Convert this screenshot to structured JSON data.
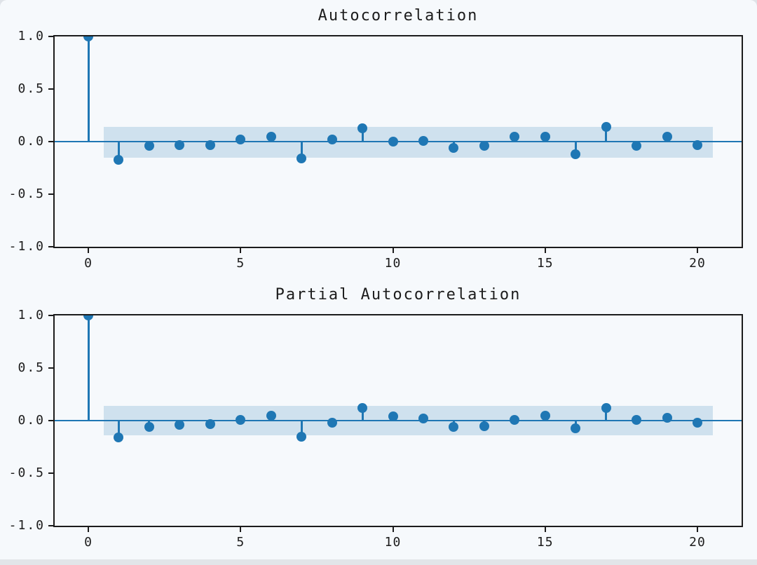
{
  "figure": {
    "background": "#f6f9fc",
    "accent_blue": "#1f77b4",
    "band_fill": "rgba(31,119,180,0.18)",
    "frame_color": "#1c1c1c"
  },
  "chart_data": [
    {
      "type": "stem",
      "title": "Autocorrelation",
      "xlabel": "",
      "ylabel": "",
      "xlim": [
        -1.1,
        21.5
      ],
      "ylim": [
        -1.0,
        1.0
      ],
      "grid": false,
      "legend": "none",
      "x": [
        0,
        1,
        2,
        3,
        4,
        5,
        6,
        7,
        8,
        9,
        10,
        11,
        12,
        13,
        14,
        15,
        16,
        17,
        18,
        19,
        20
      ],
      "values": [
        1.0,
        -0.17,
        -0.04,
        -0.03,
        -0.03,
        0.02,
        0.05,
        -0.16,
        0.02,
        0.13,
        0.0,
        0.01,
        -0.06,
        -0.04,
        0.05,
        0.05,
        -0.12,
        0.14,
        -0.04,
        0.05,
        -0.03
      ],
      "conf_band": {
        "lower": -0.15,
        "upper": 0.14,
        "x_start": 0.5,
        "x_end": 20.5
      },
      "yticks": [
        {
          "label": "1.0",
          "value": 1.0
        },
        {
          "label": "0.5",
          "value": 0.5
        },
        {
          "label": "0.0",
          "value": 0.0
        },
        {
          "label": "-0.5",
          "value": -0.5
        },
        {
          "label": "-1.0",
          "value": -1.0
        }
      ],
      "xticks": [
        {
          "label": "0",
          "value": 0
        },
        {
          "label": "5",
          "value": 5
        },
        {
          "label": "10",
          "value": 10
        },
        {
          "label": "15",
          "value": 15
        },
        {
          "label": "20",
          "value": 20
        }
      ]
    },
    {
      "type": "stem",
      "title": "Partial Autocorrelation",
      "xlabel": "",
      "ylabel": "",
      "xlim": [
        -1.1,
        21.5
      ],
      "ylim": [
        -1.0,
        1.0
      ],
      "grid": false,
      "legend": "none",
      "x": [
        0,
        1,
        2,
        3,
        4,
        5,
        6,
        7,
        8,
        9,
        10,
        11,
        12,
        13,
        14,
        15,
        16,
        17,
        18,
        19,
        20
      ],
      "values": [
        1.0,
        -0.16,
        -0.06,
        -0.04,
        -0.03,
        0.01,
        0.05,
        -0.15,
        -0.02,
        0.12,
        0.04,
        0.02,
        -0.06,
        -0.05,
        0.01,
        0.05,
        -0.07,
        0.12,
        0.01,
        0.03,
        -0.02
      ],
      "conf_band": {
        "lower": -0.14,
        "upper": 0.14,
        "x_start": 0.5,
        "x_end": 20.5
      },
      "yticks": [
        {
          "label": "1.0",
          "value": 1.0
        },
        {
          "label": "0.5",
          "value": 0.5
        },
        {
          "label": "0.0",
          "value": 0.0
        },
        {
          "label": "-0.5",
          "value": -0.5
        },
        {
          "label": "-1.0",
          "value": -1.0
        }
      ],
      "xticks": [
        {
          "label": "0",
          "value": 0
        },
        {
          "label": "5",
          "value": 5
        },
        {
          "label": "10",
          "value": 10
        },
        {
          "label": "15",
          "value": 15
        },
        {
          "label": "20",
          "value": 20
        }
      ]
    }
  ]
}
